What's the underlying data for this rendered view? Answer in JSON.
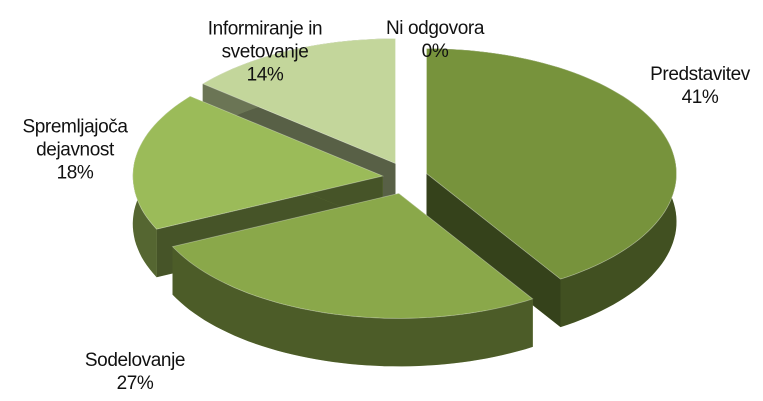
{
  "chart_data": {
    "type": "pie3d",
    "categories": [
      "Predstavitev",
      "Sodelovanje",
      "Spremljajoča dejavnost",
      "Informiranje in svetovanje",
      "Ni odgovora"
    ],
    "values": [
      41,
      27,
      18,
      14,
      0
    ],
    "value_labels": [
      "41%",
      "27%",
      "18%",
      "14%",
      "0%"
    ],
    "colors": [
      "#77933c",
      "#8aa84a",
      "#9bbb59",
      "#c3d69b",
      "#d7e4bd"
    ]
  }
}
